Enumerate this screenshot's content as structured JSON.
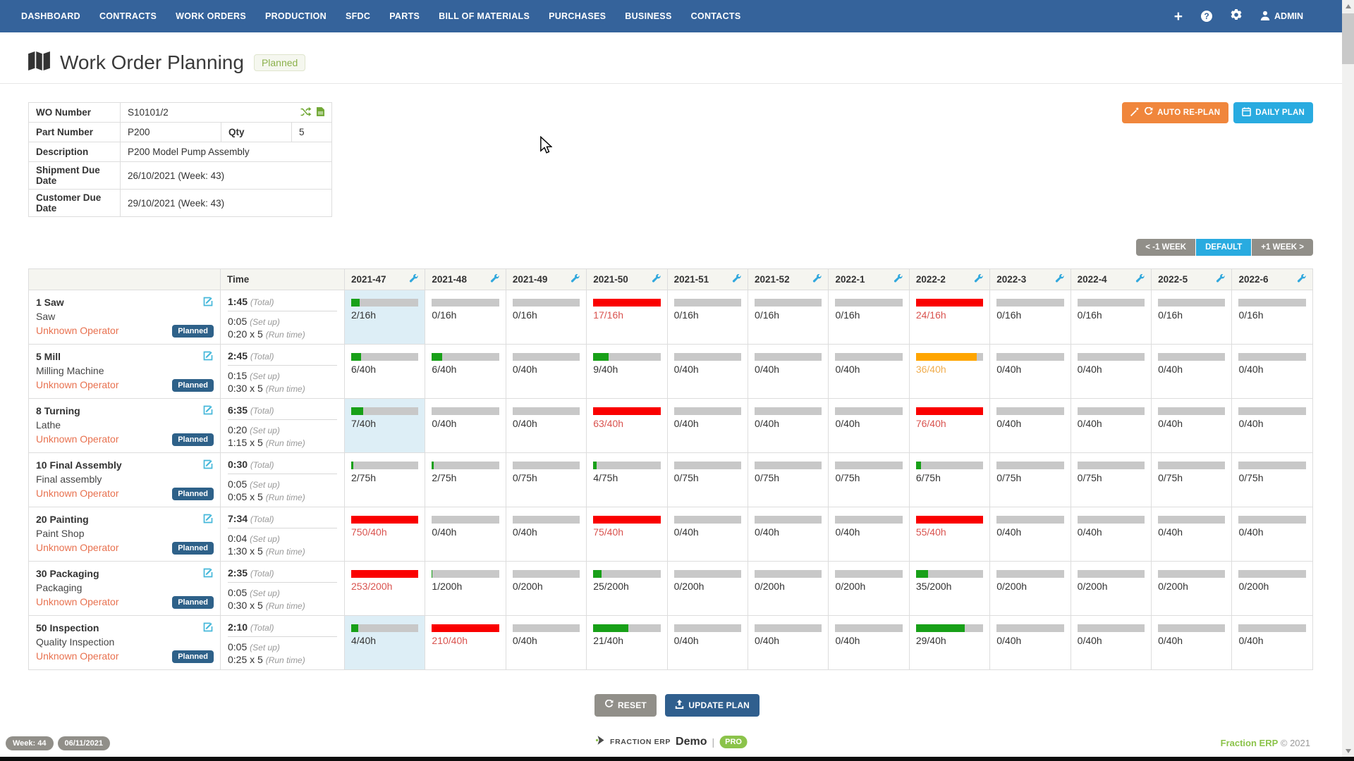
{
  "navbar": {
    "items": [
      {
        "label": "DASHBOARD"
      },
      {
        "label": "CONTRACTS"
      },
      {
        "label": "WORK ORDERS"
      },
      {
        "label": "PRODUCTION"
      },
      {
        "label": "SFDC"
      },
      {
        "label": "PARTS"
      },
      {
        "label": "BILL OF MATERIALS"
      },
      {
        "label": "PURCHASES"
      },
      {
        "label": "BUSINESS"
      },
      {
        "label": "CONTACTS"
      }
    ],
    "admin_label": "ADMIN"
  },
  "page_header": {
    "title": "Work Order Planning",
    "status_badge": "Planned"
  },
  "wo_details": {
    "rows": {
      "wo_number": {
        "label": "WO Number",
        "value": "S10101/2"
      },
      "part_number": {
        "label": "Part Number",
        "value": "P200"
      },
      "qty": {
        "label": "Qty",
        "value": "5"
      },
      "description": {
        "label": "Description",
        "value": "P200 Model Pump Assembly"
      },
      "shipment_due": {
        "label": "Shipment Due Date",
        "value": "26/10/2021 (Week: 43)"
      },
      "customer_due": {
        "label": "Customer Due Date",
        "value": "29/10/2021 (Week: 43)"
      }
    }
  },
  "toolbar": {
    "auto_replan_label": "AUTO RE-PLAN",
    "daily_plan_label": "DAILY PLAN"
  },
  "week_nav": {
    "prev_label": "< -1 WEEK",
    "default_label": "DEFAULT",
    "next_label": "+1 WEEK >"
  },
  "plan_table": {
    "time_header": "Time",
    "weeks": [
      "2021-47",
      "2021-48",
      "2021-49",
      "2021-50",
      "2021-51",
      "2021-52",
      "2022-1",
      "2022-2",
      "2022-3",
      "2022-4",
      "2022-5",
      "2022-6"
    ],
    "labels": {
      "total": "(Total)",
      "setup": "(Set up)",
      "runtime": "(Run time)"
    },
    "rows": [
      {
        "operation": "1 Saw",
        "machine": "Saw",
        "operator": "Unknown Operator",
        "status": "Planned",
        "total": "1:45",
        "setup": "0:05",
        "runtime": "0:20 x 5",
        "highlight_week": "2021-47",
        "cells": [
          "2/16h",
          "0/16h",
          "0/16h",
          "17/16h",
          "0/16h",
          "0/16h",
          "0/16h",
          "24/16h",
          "0/16h",
          "0/16h",
          "0/16h",
          "0/16h"
        ]
      },
      {
        "operation": "5 Mill",
        "machine": "Milling Machine",
        "operator": "Unknown Operator",
        "status": "Planned",
        "total": "2:45",
        "setup": "0:15",
        "runtime": "0:30 x 5",
        "highlight_week": null,
        "cells": [
          "6/40h",
          "6/40h",
          "0/40h",
          "9/40h",
          "0/40h",
          "0/40h",
          "0/40h",
          "36/40h",
          "0/40h",
          "0/40h",
          "0/40h",
          "0/40h"
        ]
      },
      {
        "operation": "8 Turning",
        "machine": "Lathe",
        "operator": "Unknown Operator",
        "status": "Planned",
        "total": "6:35",
        "setup": "0:20",
        "runtime": "1:15 x 5",
        "highlight_week": "2021-47",
        "cells": [
          "7/40h",
          "0/40h",
          "0/40h",
          "63/40h",
          "0/40h",
          "0/40h",
          "0/40h",
          "76/40h",
          "0/40h",
          "0/40h",
          "0/40h",
          "0/40h"
        ]
      },
      {
        "operation": "10 Final Assembly",
        "machine": "Final assembly",
        "operator": "Unknown Operator",
        "status": "Planned",
        "total": "0:30",
        "setup": "0:05",
        "runtime": "0:05 x 5",
        "highlight_week": null,
        "cells": [
          "2/75h",
          "2/75h",
          "0/75h",
          "4/75h",
          "0/75h",
          "0/75h",
          "0/75h",
          "6/75h",
          "0/75h",
          "0/75h",
          "0/75h",
          "0/75h"
        ]
      },
      {
        "operation": "20 Painting",
        "machine": "Paint Shop",
        "operator": "Unknown Operator",
        "status": "Planned",
        "total": "7:34",
        "setup": "0:04",
        "runtime": "1:30 x 5",
        "highlight_week": null,
        "cells": [
          "750/40h",
          "0/40h",
          "0/40h",
          "75/40h",
          "0/40h",
          "0/40h",
          "0/40h",
          "55/40h",
          "0/40h",
          "0/40h",
          "0/40h",
          "0/40h"
        ]
      },
      {
        "operation": "30 Packaging",
        "machine": "Packaging",
        "operator": "Unknown Operator",
        "status": "Planned",
        "total": "2:35",
        "setup": "0:05",
        "runtime": "0:30 x 5",
        "highlight_week": null,
        "cells": [
          "253/200h",
          "1/200h",
          "0/200h",
          "25/200h",
          "0/200h",
          "0/200h",
          "0/200h",
          "35/200h",
          "0/200h",
          "0/200h",
          "0/200h",
          "0/200h"
        ]
      },
      {
        "operation": "50 Inspection",
        "machine": "Quality Inspection",
        "operator": "Unknown Operator",
        "status": "Planned",
        "total": "2:10",
        "setup": "0:05",
        "runtime": "0:25 x 5",
        "highlight_week": "2021-47",
        "cells": [
          "4/40h",
          "210/40h",
          "0/40h",
          "21/40h",
          "0/40h",
          "0/40h",
          "0/40h",
          "29/40h",
          "0/40h",
          "0/40h",
          "0/40h",
          "0/40h"
        ]
      }
    ]
  },
  "plan_actions": {
    "reset_label": "RESET",
    "update_label": "UPDATE PLAN"
  },
  "footer": {
    "week_badge": "Week: 44",
    "date_badge": "06/11/2021",
    "brand": "FRACTION ERP",
    "brand_demo": "Demo",
    "brand_pro": "PRO",
    "copyright_brand": "Fraction ERP",
    "copyright": "© 2021"
  },
  "colors": {
    "navbar": "#35639b",
    "accent-orange": "#f0863c",
    "accent-cyan": "#29abe0",
    "accent-darkblue": "#305f8e",
    "accent-gray": "#918f89",
    "brand-green": "#8bc34a",
    "icon-green": "#71a835",
    "bar-green": "#18a018",
    "bar-red": "#fa0000",
    "bar-orange": "#ffa500",
    "bar-track": "#c8c8c8",
    "text-red": "#d9534f",
    "text-orange": "#f0ad4e",
    "operator-link": "#e8714f",
    "badge-blue": "#2e6189",
    "cell-highlight": "#ddeef6",
    "wrench-blue": "#31a8dd"
  }
}
